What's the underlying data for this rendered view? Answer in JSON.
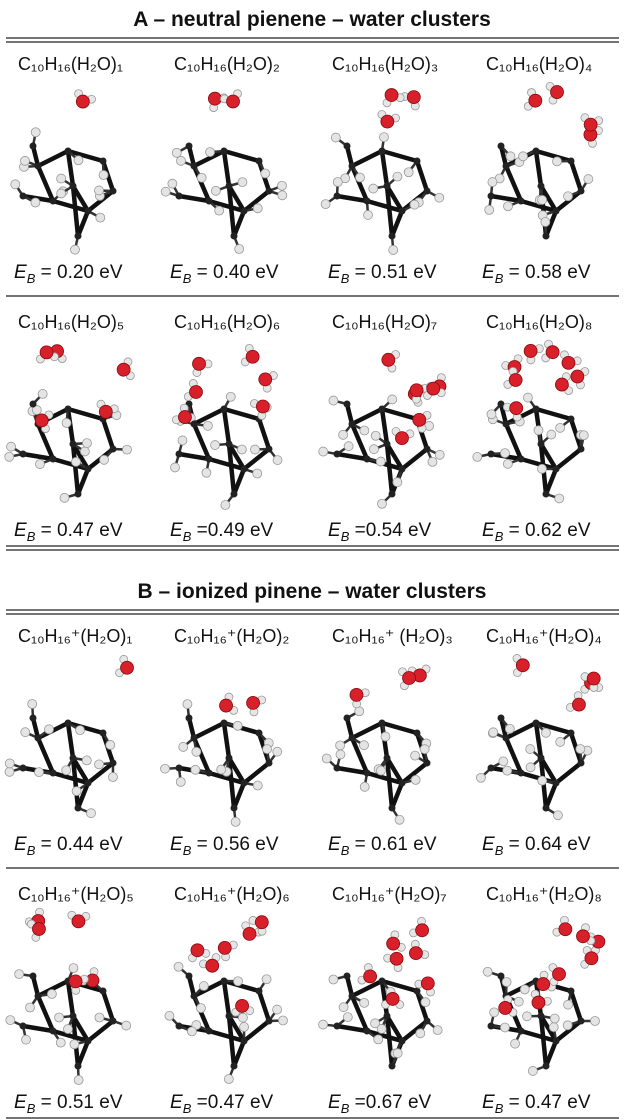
{
  "panels": [
    {
      "title": "A – neutral pienene – water clusters",
      "cells": [
        {
          "formula": "C₁₀H₁₆(H₂O)₁",
          "energy": {
            "symbol": "E",
            "subscript": "B",
            "text": " = 0.20 eV"
          }
        },
        {
          "formula": "C₁₀H₁₆(H₂O)₂",
          "energy": {
            "symbol": "E",
            "subscript": "B",
            "text": " = 0.40 eV"
          }
        },
        {
          "formula": "C₁₀H₁₆(H₂O)₃",
          "energy": {
            "symbol": "E",
            "subscript": "B",
            "text": " = 0.51 eV"
          }
        },
        {
          "formula": "C₁₀H₁₆(H₂O)₄",
          "energy": {
            "symbol": "E",
            "subscript": "B",
            "text": " = 0.58 eV"
          }
        },
        {
          "formula": "C₁₀H₁₆(H₂O)₅",
          "energy": {
            "symbol": "E",
            "subscript": "B",
            "text": " = 0.47 eV"
          }
        },
        {
          "formula": "C₁₀H₁₆(H₂O)₆",
          "energy": {
            "symbol": "E",
            "subscript": "B",
            "text": " =0.49 eV"
          }
        },
        {
          "formula": "C₁₀H₁₆(H₂O)₇",
          "energy": {
            "symbol": "E",
            "subscript": "B",
            "text": " =0.54 eV"
          }
        },
        {
          "formula": "C₁₀H₁₆(H₂O)₈",
          "energy": {
            "symbol": "E",
            "subscript": "B",
            "text": " = 0.62 eV"
          }
        }
      ]
    },
    {
      "title": "B – ionized pinene – water clusters",
      "cells": [
        {
          "formula": "C₁₀H₁₆⁺(H₂O)₁",
          "energy": {
            "symbol": "E",
            "subscript": "B",
            "text": " = 0.44 eV"
          }
        },
        {
          "formula": "C₁₀H₁₆⁺(H₂O)₂",
          "energy": {
            "symbol": "E",
            "subscript": "B",
            "text": " = 0.56 eV"
          }
        },
        {
          "formula": "C₁₀H₁₆⁺ (H₂O)₃",
          "energy": {
            "symbol": "E",
            "subscript": "B",
            "text": " = 0.61 eV"
          }
        },
        {
          "formula": "C₁₀H₁₆⁺(H₂O)₄",
          "energy": {
            "symbol": "E",
            "subscript": "B",
            "text": " = 0.64 eV"
          }
        },
        {
          "formula": "C₁₀H₁₆⁺(H₂O)₅",
          "energy": {
            "symbol": "E",
            "subscript": "B",
            "text": " = 0.51 eV"
          }
        },
        {
          "formula": "C₁₀H₁₆⁺(H₂O)₆",
          "energy": {
            "symbol": "E",
            "subscript": "B",
            "text": " =0.47 eV"
          }
        },
        {
          "formula": "C₁₀H₁₆⁺(H₂O)₇",
          "energy": {
            "symbol": "E",
            "subscript": "B",
            "text": " =0.67 eV"
          }
        },
        {
          "formula": "C₁₀H₁₆⁺(H₂O)₈",
          "energy": {
            "symbol": "E",
            "subscript": "B",
            "text": " = 0.47 eV"
          }
        }
      ]
    }
  ]
}
